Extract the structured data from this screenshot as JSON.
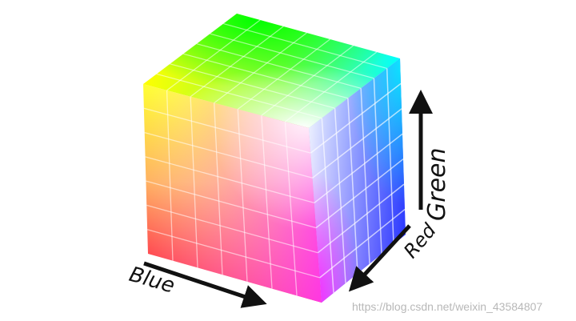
{
  "axes": {
    "blue": "Blue",
    "red": "Red",
    "green": "Green"
  },
  "watermark": "https://blog.csdn.net/weixin_43584807",
  "grid_divisions": 7,
  "colors": {
    "top_left": "#ffff00",
    "top_back": "#00ff00",
    "top_right": "#00ffff",
    "center_corner": "#ffffff",
    "front_bottom_left": "#ff0000",
    "front_bottom_right": "#ff00ff",
    "right_bottom": "#0000ff",
    "arrow": "#111111"
  }
}
